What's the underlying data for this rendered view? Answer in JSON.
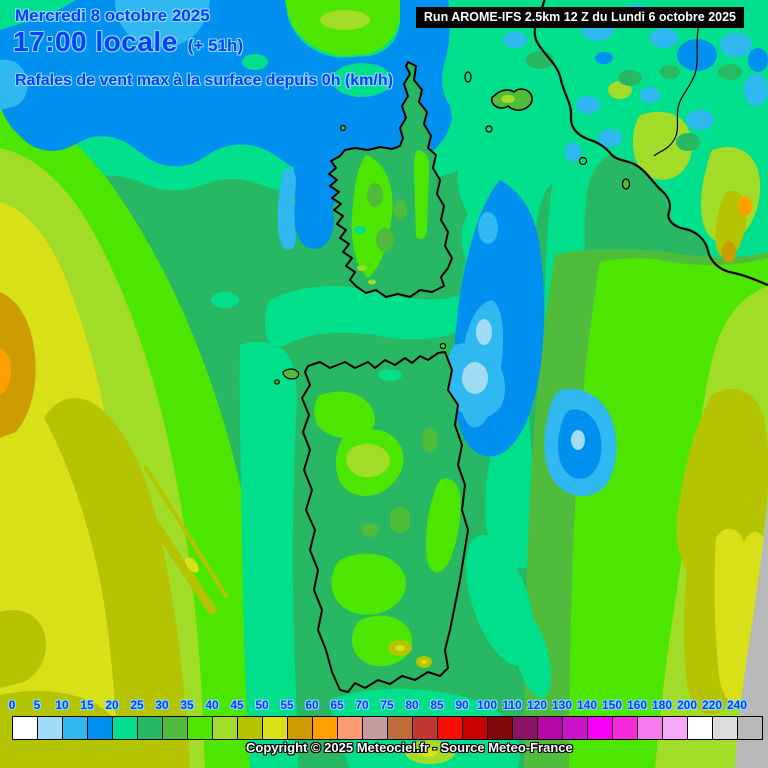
{
  "header": {
    "date_line": "Mercredi 8 octobre 2025",
    "time_line": "17:00 locale",
    "offset_label": "(+ 51h)",
    "subtitle": "Rafales de vent max à la surface depuis 0h (km/h)",
    "run_info": "Run AROME-IFS 2.5km 12 Z du Lundi 6 octobre 2025"
  },
  "footer": {
    "copyright": "Copyright © 2025 Meteociel.fr - Source Meteo-France"
  },
  "theme": {
    "header_text": "#0040ff",
    "header_halo": "#8fd9ff",
    "run_bg": "#000000",
    "run_text": "#ffffff",
    "legend_text": "#0040ff",
    "legend_halo": "#8fd9ff",
    "legend_border": "#000000",
    "copyright_text": "#ffffff",
    "copyright_outline": "#000000"
  },
  "legend": {
    "unit": "km/h",
    "values": [
      0,
      5,
      10,
      15,
      20,
      25,
      30,
      35,
      40,
      45,
      50,
      55,
      60,
      65,
      70,
      75,
      80,
      85,
      90,
      100,
      110,
      120,
      130,
      140,
      150,
      160,
      180,
      200,
      220,
      240
    ],
    "colors": [
      "#ffffff",
      "#a0dcf4",
      "#30b8f0",
      "#0090f0",
      "#00e08c",
      "#28b864",
      "#50bc3c",
      "#4ce600",
      "#a0dc28",
      "#b4c400",
      "#d8e018",
      "#cc9c00",
      "#ffa000",
      "#fc9c70",
      "#c69c9c",
      "#c06c38",
      "#c03830",
      "#f81008",
      "#cc0000",
      "#800808",
      "#8c1464",
      "#b808a8",
      "#cc14cc",
      "#f800f8",
      "#fa28dc",
      "#f87cf0",
      "#f8a8f8",
      "#ffffff",
      "#dcdcdc",
      "#b8b8b8"
    ]
  },
  "map": {
    "description": "Wind gust field over Corsica, Sardinia and west-central Italy",
    "palette": {
      "sea_green": "#28b864",
      "spring_green": "#00e08c",
      "mid_green": "#50bc3c",
      "bright_green": "#4ce600",
      "yellow_green": "#a0dc28",
      "olive": "#b4c400",
      "yellow": "#d8e018",
      "goldenrod": "#cc9c00",
      "orange": "#ffa000",
      "blue": "#0090f0",
      "cyan": "#30b8f0",
      "light_blue": "#a0dcf4",
      "gray_edge": "#b8b8b8",
      "coastline": "#000000"
    }
  }
}
